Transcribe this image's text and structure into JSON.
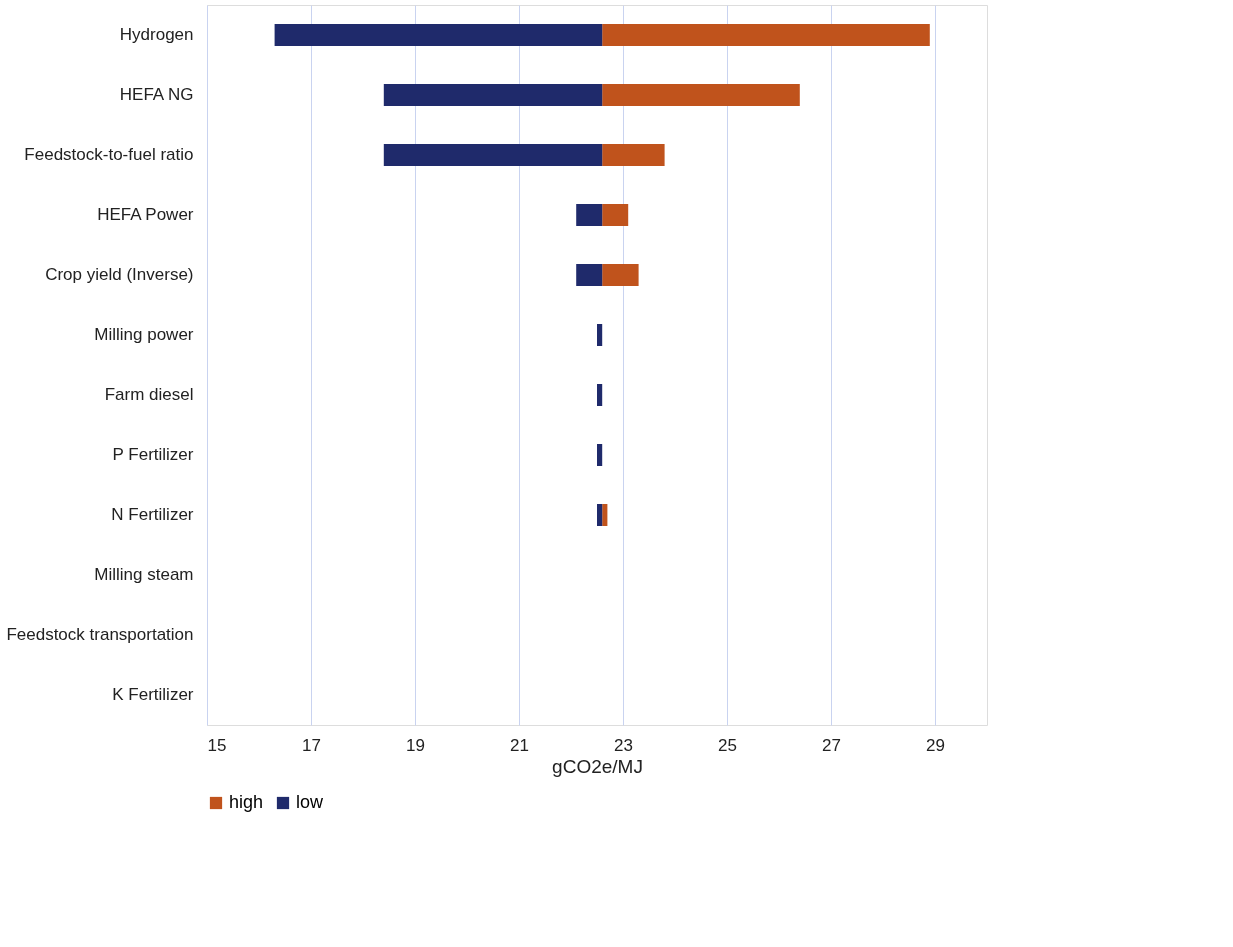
{
  "chart_data": {
    "type": "bar",
    "orientation": "horizontal",
    "xlabel": "gCO2e/MJ",
    "categories": [
      "Hydrogen",
      "HEFA NG",
      "Feedstock-to-fuel ratio",
      "HEFA Power",
      "Crop yield (Inverse)",
      "Milling power",
      "Farm diesel",
      "P Fertilizer",
      "N Fertilizer",
      "Milling steam",
      "Feedstock transportation",
      "K Fertilizer"
    ],
    "series": [
      {
        "name": "high",
        "color": "#c0531c",
        "base": [
          22.6,
          22.6,
          22.6,
          22.6,
          22.6,
          null,
          null,
          null,
          22.6,
          null,
          null,
          null
        ],
        "values": [
          6.3,
          3.8,
          1.2,
          0.5,
          0.7,
          null,
          null,
          null,
          0.1,
          null,
          null,
          null
        ]
      },
      {
        "name": "low",
        "color": "#1f2a6b",
        "base": [
          22.6,
          22.6,
          22.6,
          22.6,
          22.6,
          22.6,
          22.6,
          22.6,
          22.6,
          null,
          null,
          null
        ],
        "values": [
          -6.3,
          -4.2,
          -4.2,
          -0.5,
          -0.5,
          -0.1,
          -0.1,
          -0.1,
          -0.1,
          null,
          null,
          null
        ]
      }
    ],
    "xlim": [
      15,
      30
    ],
    "xticks": [
      15,
      17,
      19,
      21,
      23,
      25,
      27,
      29
    ],
    "grid": "x",
    "legend": "bottom"
  }
}
